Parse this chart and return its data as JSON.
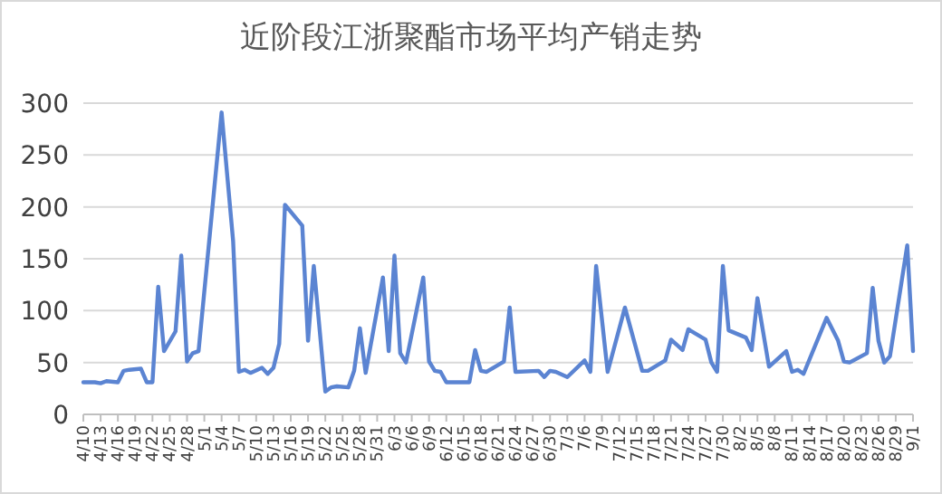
{
  "chart_data": {
    "type": "line",
    "title": "近阶段江浙聚酯市场平均产销走势",
    "color": "#5b84d2",
    "grid": "y",
    "marker": "none",
    "line_style": "solid",
    "x": [
      "--04-10",
      "--04-12",
      "--04-13",
      "--04-14",
      "--04-16",
      "--04-17",
      "--04-18",
      "--04-20",
      "--04-21",
      "--04-22",
      "--04-23",
      "--04-24",
      "--04-26",
      "--04-27",
      "--04-28",
      "--04-29",
      "--04-30",
      "--05-04",
      "--05-06",
      "--05-07",
      "--05-08",
      "--05-09",
      "--05-11",
      "--05-12",
      "--05-13",
      "--05-14",
      "--05-15",
      "--05-18",
      "--05-19",
      "--05-20",
      "--05-22",
      "--05-23",
      "--05-24",
      "--05-26",
      "--05-27",
      "--05-28",
      "--05-29",
      "--06-01",
      "--06-02",
      "--06-03",
      "--06-04",
      "--06-05",
      "--06-08",
      "--06-09",
      "--06-10",
      "--06-11",
      "--06-12",
      "--06-16",
      "--06-17",
      "--06-18",
      "--06-19",
      "--06-22",
      "--06-23",
      "--06-24",
      "--06-28",
      "--06-29",
      "--06-30",
      "--07-01",
      "--07-03",
      "--07-06",
      "--07-07",
      "--07-08",
      "--07-10",
      "--07-13",
      "--07-16",
      "--07-17",
      "--07-20",
      "--07-21",
      "--07-23",
      "--07-24",
      "--07-27",
      "--07-28",
      "--07-29",
      "--07-30",
      "--07-31",
      "--08-03",
      "--08-04",
      "--08-05",
      "--08-07",
      "--08-10",
      "--08-11",
      "--08-12",
      "--08-13",
      "--08-17",
      "--08-19",
      "--08-20",
      "--08-21",
      "--08-24",
      "--08-25",
      "--08-26",
      "--08-27",
      "--08-28",
      "--08-31",
      "--09-01"
    ],
    "values": [
      31,
      31,
      30,
      32,
      31,
      42,
      43,
      44,
      31,
      31,
      123,
      61,
      80,
      153,
      51,
      59,
      61,
      291,
      167,
      41,
      43,
      40,
      45,
      39,
      45,
      68,
      202,
      182,
      71,
      143,
      22,
      26,
      27,
      26,
      42,
      83,
      40,
      132,
      61,
      153,
      59,
      50,
      132,
      51,
      42,
      41,
      31,
      31,
      62,
      42,
      41,
      51,
      103,
      41,
      42,
      36,
      42,
      41,
      36,
      52,
      41,
      143,
      41,
      103,
      42,
      42,
      52,
      72,
      62,
      82,
      72,
      50,
      41,
      143,
      81,
      74,
      62,
      112,
      46,
      61,
      41,
      43,
      39,
      93,
      71,
      51,
      50,
      59,
      122,
      71,
      50,
      56,
      163,
      61
    ],
    "xlim": [
      "--04-10",
      "--09-01"
    ],
    "xticks": [
      {
        "value": "--04-10",
        "label": "4/10"
      },
      {
        "value": "--04-13",
        "label": "4/13"
      },
      {
        "value": "--04-16",
        "label": "4/16"
      },
      {
        "value": "--04-19",
        "label": "4/19"
      },
      {
        "value": "--04-22",
        "label": "4/22"
      },
      {
        "value": "--04-25",
        "label": "4/25"
      },
      {
        "value": "--04-28",
        "label": "4/28"
      },
      {
        "value": "--05-01",
        "label": "5/1"
      },
      {
        "value": "--05-04",
        "label": "5/4"
      },
      {
        "value": "--05-07",
        "label": "5/7"
      },
      {
        "value": "--05-10",
        "label": "5/10"
      },
      {
        "value": "--05-13",
        "label": "5/13"
      },
      {
        "value": "--05-16",
        "label": "5/16"
      },
      {
        "value": "--05-19",
        "label": "5/19"
      },
      {
        "value": "--05-22",
        "label": "5/22"
      },
      {
        "value": "--05-25",
        "label": "5/25"
      },
      {
        "value": "--05-28",
        "label": "5/28"
      },
      {
        "value": "--05-31",
        "label": "5/31"
      },
      {
        "value": "--06-03",
        "label": "6/3"
      },
      {
        "value": "--06-06",
        "label": "6/6"
      },
      {
        "value": "--06-09",
        "label": "6/9"
      },
      {
        "value": "--06-12",
        "label": "6/12"
      },
      {
        "value": "--06-15",
        "label": "6/15"
      },
      {
        "value": "--06-18",
        "label": "6/18"
      },
      {
        "value": "--06-21",
        "label": "6/21"
      },
      {
        "value": "--06-24",
        "label": "6/24"
      },
      {
        "value": "--06-27",
        "label": "6/27"
      },
      {
        "value": "--06-30",
        "label": "6/30"
      },
      {
        "value": "--07-03",
        "label": "7/3"
      },
      {
        "value": "--07-06",
        "label": "7/6"
      },
      {
        "value": "--07-09",
        "label": "7/9"
      },
      {
        "value": "--07-12",
        "label": "7/12"
      },
      {
        "value": "--07-15",
        "label": "7/15"
      },
      {
        "value": "--07-18",
        "label": "7/18"
      },
      {
        "value": "--07-21",
        "label": "7/21"
      },
      {
        "value": "--07-24",
        "label": "7/24"
      },
      {
        "value": "--07-27",
        "label": "7/27"
      },
      {
        "value": "--07-30",
        "label": "7/30"
      },
      {
        "value": "--08-02",
        "label": "8/2"
      },
      {
        "value": "--08-05",
        "label": "8/5"
      },
      {
        "value": "--08-08",
        "label": "8/8"
      },
      {
        "value": "--08-11",
        "label": "8/11"
      },
      {
        "value": "--08-14",
        "label": "8/14"
      },
      {
        "value": "--08-17",
        "label": "8/17"
      },
      {
        "value": "--08-20",
        "label": "8/20"
      },
      {
        "value": "--08-23",
        "label": "8/23"
      },
      {
        "value": "--08-26",
        "label": "8/26"
      },
      {
        "value": "--08-29",
        "label": "8/29"
      },
      {
        "value": "--09-01",
        "label": "9/1"
      }
    ],
    "ylim": [
      0,
      300
    ],
    "yticks": [
      0,
      50,
      100,
      150,
      200,
      250,
      300
    ]
  }
}
